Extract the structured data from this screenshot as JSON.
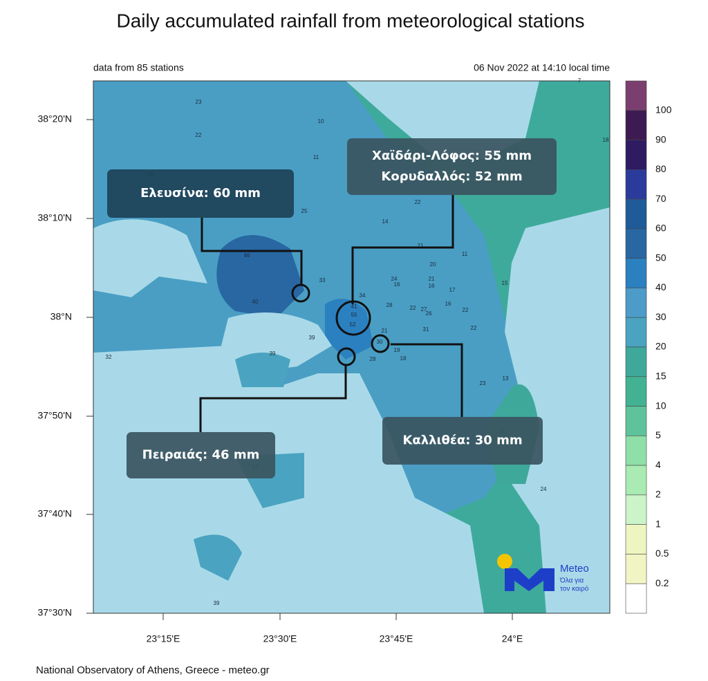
{
  "title": "Daily accumulated rainfall from meteorological stations",
  "subtitle_left": "data from 85 stations",
  "subtitle_right": "06 Nov 2022 at 14:10 local time",
  "lat_labels": [
    "38°20'N",
    "38°10'N",
    "38°N",
    "37°50'N",
    "37°40'N",
    "37°30'N"
  ],
  "lon_labels": [
    "23°15'E",
    "23°30'E",
    "23°45'E",
    "24°E"
  ],
  "colorbar": {
    "labels": [
      "100",
      "90",
      "80",
      "70",
      "60",
      "50",
      "40",
      "30",
      "20",
      "15",
      "10",
      "5",
      "4",
      "2",
      "1",
      "0.5",
      "0.2"
    ],
    "colors": [
      "#7b3f6f",
      "#3e1a52",
      "#2e1b62",
      "#2b3b9c",
      "#1f5b98",
      "#2867a2",
      "#2b80c0",
      "#4c9bc9",
      "#4aa3c0",
      "#3ea89b",
      "#43b293",
      "#5ec39b",
      "#8fdfa8",
      "#a9ebb2",
      "#cbf4c9",
      "#eef5c0",
      "#f1f5c4",
      "#ffffff"
    ]
  },
  "callouts": [
    {
      "lines": [
        "Ελευσίνα: 60 mm"
      ]
    },
    {
      "lines": [
        "Χαϊδάρι-Λόφος: 55 mm",
        "Κορυδαλλός: 52 mm"
      ]
    },
    {
      "lines": [
        "Πειραιάς: 46 mm"
      ]
    },
    {
      "lines": [
        "Καλλιθέα: 30 mm"
      ]
    }
  ],
  "stations": [
    "23",
    "22",
    "10",
    "11",
    "18",
    "28",
    "25",
    "22",
    "14",
    "21",
    "11",
    "46",
    "33",
    "34",
    "40",
    "41",
    "55",
    "52",
    "24",
    "16",
    "21",
    "16",
    "17",
    "20",
    "15",
    "28",
    "22",
    "27",
    "26",
    "16",
    "22",
    "31",
    "22",
    "21",
    "30",
    "19",
    "18",
    "28",
    "39",
    "39",
    "32",
    "23",
    "13",
    "21",
    "14",
    "24",
    "39",
    "7"
  ],
  "footer": "National Observatory of Athens, Greece - meteo.gr",
  "logo": {
    "name": "Meteo",
    "tagline_1": "Όλα για",
    "tagline_2": "τον καιρό"
  }
}
